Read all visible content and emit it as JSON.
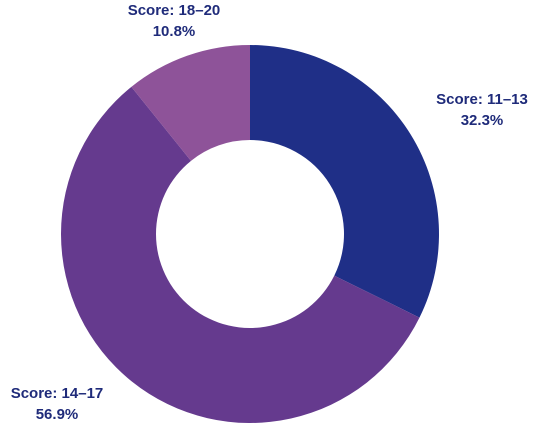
{
  "chart_data": {
    "type": "pie",
    "variant": "donut",
    "title": "",
    "start_angle_deg": 0,
    "direction": "clockwise",
    "label_color": "#1f2b7a",
    "slices": [
      {
        "label": "Score: 11–13",
        "value": 32.3,
        "value_label": "32.3%",
        "color": "#1f2f87"
      },
      {
        "label": "Score: 14–17",
        "value": 56.9,
        "value_label": "56.9%",
        "color": "#653a8e"
      },
      {
        "label": "Score: 18–20",
        "value": 10.8,
        "value_label": "10.8%",
        "color": "#8e5399"
      }
    ]
  }
}
